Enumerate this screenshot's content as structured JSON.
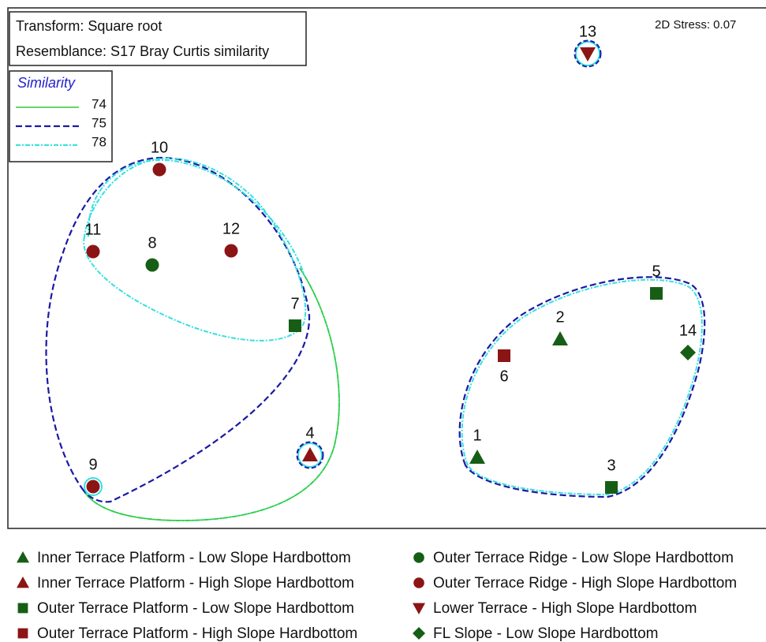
{
  "chart_data": {
    "type": "scatter",
    "transform": "Transform: Square root",
    "resemblance": "Resemblance: S17 Bray Curtis similarity",
    "stress": "2D Stress: 0.07",
    "similarity_title": "Similarity",
    "similarity_levels": [
      {
        "value": 74,
        "color": "#33cc33"
      },
      {
        "value": 75,
        "color": "#1a1aa6"
      },
      {
        "value": 78,
        "color": "#33e0e0"
      }
    ],
    "groups": [
      {
        "name": "Inner Terrace Platform - Low Slope Hardbottom",
        "color": "#165e16",
        "marker": "triangle-up"
      },
      {
        "name": "Inner Terrace Platform - High Slope Hardbottom",
        "color": "#8b1515",
        "marker": "triangle-up"
      },
      {
        "name": "Outer Terrace Platform - Low Slope Hardbottom",
        "color": "#165e16",
        "marker": "square"
      },
      {
        "name": "Outer Terrace Platform - High Slope Hardbottom",
        "color": "#8b1515",
        "marker": "square"
      },
      {
        "name": "Outer Terrace Ridge - Low Slope Hardbottom",
        "color": "#165e16",
        "marker": "circle"
      },
      {
        "name": "Outer Terrace Ridge - High Slope Hardbottom",
        "color": "#8b1515",
        "marker": "circle"
      },
      {
        "name": "Lower Terrace - High Slope Hardbottom",
        "color": "#8b1515",
        "marker": "triangle-down"
      },
      {
        "name": "FL Slope - Low Slope Hardbottom",
        "color": "#165e16",
        "marker": "diamond"
      }
    ],
    "points": [
      {
        "label": "1",
        "group": 0
      },
      {
        "label": "2",
        "group": 0
      },
      {
        "label": "3",
        "group": 2
      },
      {
        "label": "4",
        "group": 1
      },
      {
        "label": "5",
        "group": 2
      },
      {
        "label": "6",
        "group": 3
      },
      {
        "label": "7",
        "group": 2
      },
      {
        "label": "8",
        "group": 4
      },
      {
        "label": "9",
        "group": 5
      },
      {
        "label": "10",
        "group": 5
      },
      {
        "label": "11",
        "group": 5
      },
      {
        "label": "12",
        "group": 5
      },
      {
        "label": "13",
        "group": 6
      },
      {
        "label": "14",
        "group": 7
      }
    ]
  }
}
